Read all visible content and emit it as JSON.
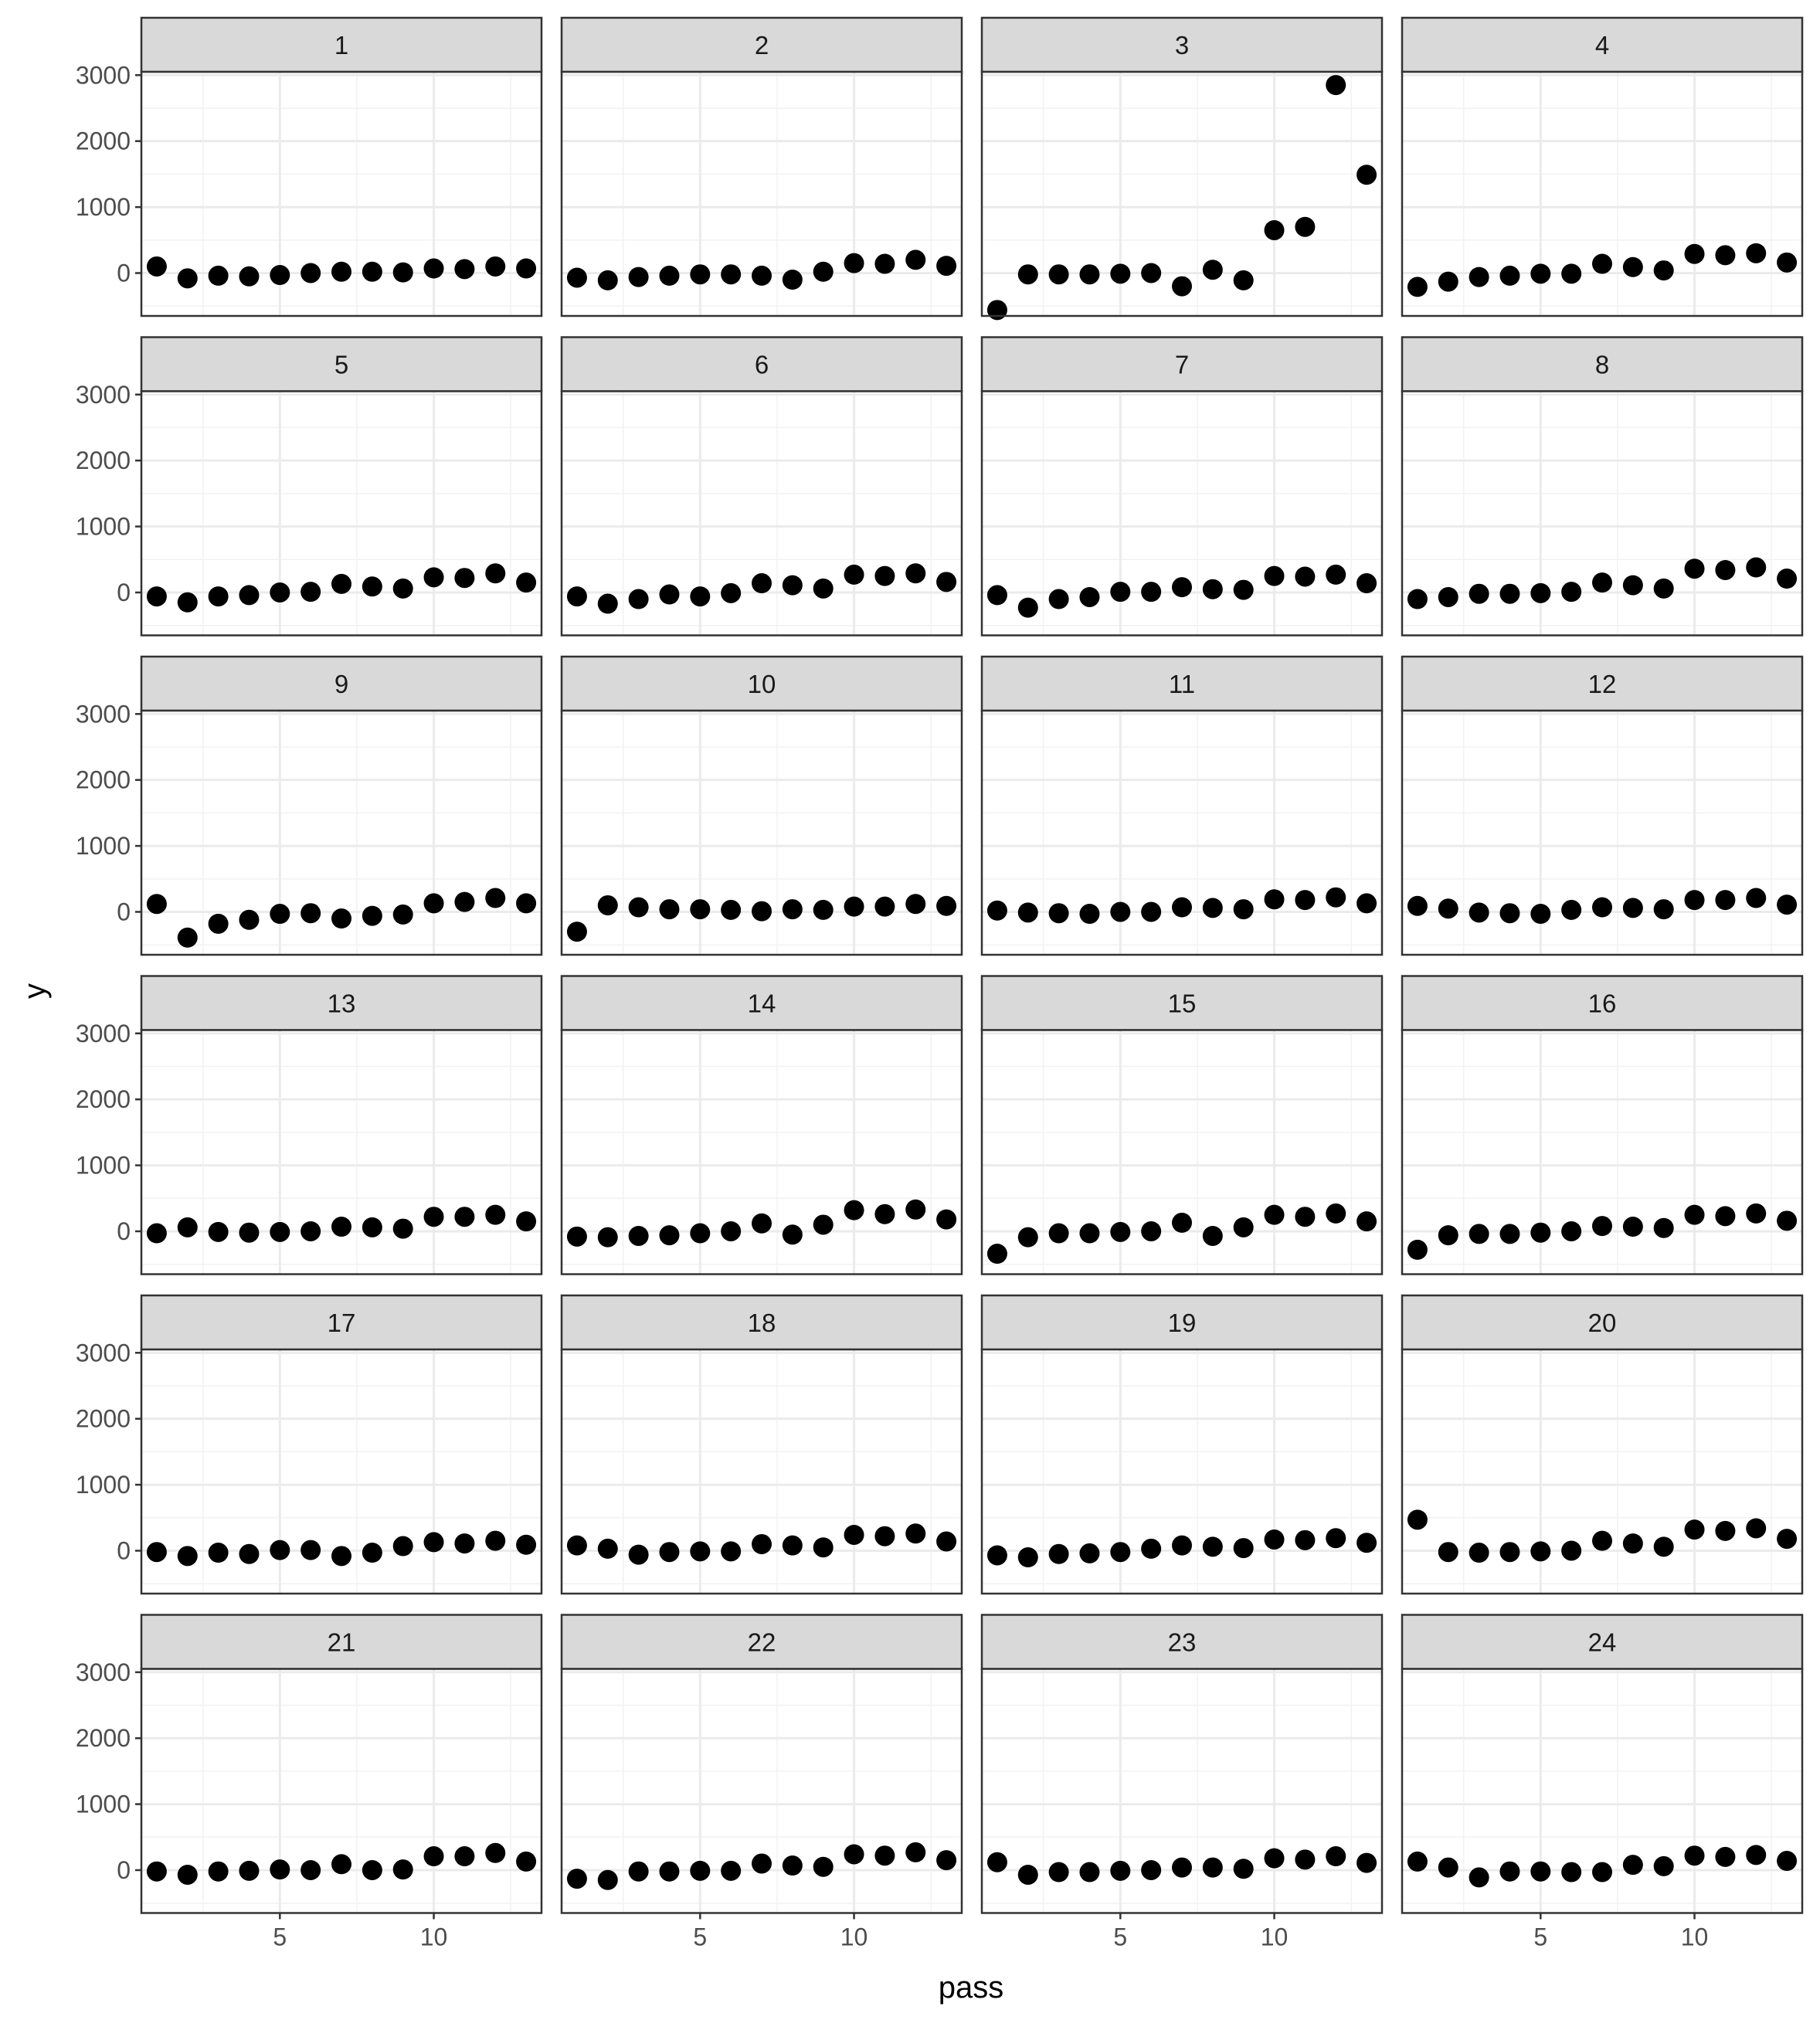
{
  "chart_data": {
    "type": "scatter",
    "facet_by": "panel",
    "layout": "6 rows x 4 columns, facet strips on top, shared axes",
    "xlabel": "pass",
    "ylabel": "y",
    "xlim": [
      0.5,
      13.5
    ],
    "ylim": [
      -650,
      3050
    ],
    "x_ticks": [
      5,
      10
    ],
    "y_ticks": [
      0,
      1000,
      2000,
      3000
    ],
    "grid": true,
    "point_color": "#000000",
    "x": [
      1,
      2,
      3,
      4,
      5,
      6,
      7,
      8,
      9,
      10,
      11,
      12,
      13
    ],
    "panels": [
      {
        "label": "1",
        "y": [
          100,
          -80,
          -40,
          -50,
          -30,
          0,
          20,
          20,
          10,
          70,
          60,
          100,
          70
        ]
      },
      {
        "label": "2",
        "y": [
          -70,
          -110,
          -60,
          -40,
          -20,
          -20,
          -40,
          -100,
          20,
          150,
          140,
          200,
          110
        ]
      },
      {
        "label": "3",
        "y": [
          -560,
          -20,
          -20,
          -20,
          -10,
          0,
          -200,
          50,
          -110,
          650,
          700,
          2850,
          1490
        ]
      },
      {
        "label": "4",
        "y": [
          -210,
          -130,
          -60,
          -40,
          -10,
          -10,
          140,
          90,
          40,
          290,
          270,
          300,
          160
        ]
      },
      {
        "label": "5",
        "y": [
          -60,
          -150,
          -60,
          -40,
          0,
          10,
          130,
          90,
          60,
          230,
          220,
          290,
          150
        ]
      },
      {
        "label": "6",
        "y": [
          -60,
          -170,
          -100,
          -30,
          -60,
          -10,
          140,
          110,
          60,
          270,
          250,
          290,
          160
        ]
      },
      {
        "label": "7",
        "y": [
          -40,
          -230,
          -100,
          -70,
          10,
          10,
          80,
          50,
          40,
          250,
          240,
          270,
          140
        ]
      },
      {
        "label": "8",
        "y": [
          -100,
          -70,
          -20,
          -20,
          -10,
          10,
          150,
          110,
          60,
          360,
          340,
          380,
          210
        ]
      },
      {
        "label": "9",
        "y": [
          120,
          -390,
          -180,
          -120,
          -30,
          -20,
          -100,
          -60,
          -40,
          130,
          150,
          210,
          130
        ]
      },
      {
        "label": "10",
        "y": [
          -300,
          100,
          70,
          40,
          40,
          30,
          10,
          40,
          30,
          80,
          80,
          120,
          90
        ]
      },
      {
        "label": "11",
        "y": [
          20,
          -10,
          -20,
          -30,
          0,
          0,
          70,
          60,
          40,
          190,
          180,
          220,
          130
        ]
      },
      {
        "label": "12",
        "y": [
          90,
          50,
          -10,
          -20,
          -30,
          30,
          70,
          60,
          40,
          180,
          180,
          210,
          110
        ]
      },
      {
        "label": "13",
        "y": [
          -30,
          60,
          -10,
          -20,
          -10,
          0,
          70,
          60,
          40,
          220,
          220,
          250,
          150
        ]
      },
      {
        "label": "14",
        "y": [
          -80,
          -90,
          -70,
          -60,
          -30,
          0,
          120,
          -50,
          100,
          320,
          260,
          330,
          180
        ]
      },
      {
        "label": "15",
        "y": [
          -340,
          -90,
          -30,
          -30,
          -10,
          0,
          130,
          -70,
          60,
          250,
          220,
          270,
          150
        ]
      },
      {
        "label": "16",
        "y": [
          -280,
          -60,
          -40,
          -40,
          -20,
          0,
          80,
          70,
          50,
          250,
          230,
          270,
          160
        ]
      },
      {
        "label": "17",
        "y": [
          -20,
          -80,
          -30,
          -50,
          10,
          10,
          -80,
          -30,
          70,
          130,
          110,
          150,
          90
        ]
      },
      {
        "label": "18",
        "y": [
          80,
          30,
          -60,
          -20,
          -10,
          -10,
          100,
          80,
          50,
          240,
          220,
          260,
          140
        ]
      },
      {
        "label": "19",
        "y": [
          -70,
          -100,
          -50,
          -40,
          -20,
          30,
          80,
          60,
          40,
          170,
          160,
          190,
          120
        ]
      },
      {
        "label": "20",
        "y": [
          470,
          -20,
          -30,
          -20,
          -10,
          0,
          150,
          110,
          60,
          320,
          300,
          340,
          180
        ]
      },
      {
        "label": "21",
        "y": [
          -20,
          -70,
          -20,
          -10,
          10,
          0,
          90,
          0,
          10,
          210,
          210,
          260,
          130
        ]
      },
      {
        "label": "22",
        "y": [
          -130,
          -150,
          -20,
          -20,
          -10,
          -10,
          100,
          70,
          50,
          240,
          220,
          270,
          150
        ]
      },
      {
        "label": "23",
        "y": [
          120,
          -70,
          -30,
          -30,
          -10,
          0,
          40,
          40,
          20,
          180,
          160,
          210,
          110
        ]
      },
      {
        "label": "24",
        "y": [
          130,
          40,
          -110,
          -20,
          -20,
          -30,
          -30,
          80,
          60,
          220,
          200,
          230,
          140
        ]
      }
    ]
  }
}
